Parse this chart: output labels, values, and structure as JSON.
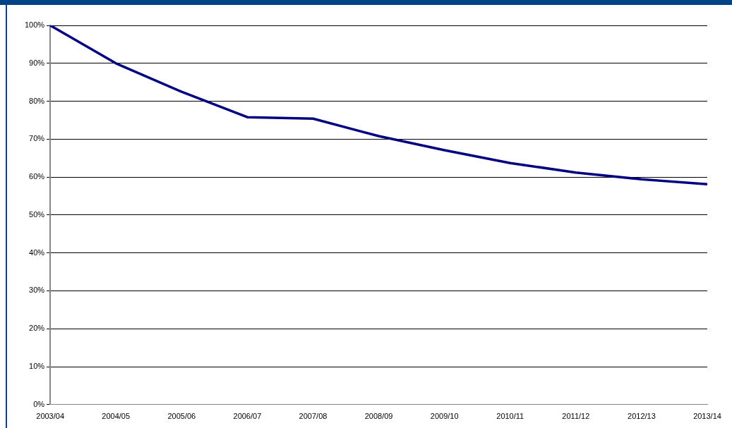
{
  "chart_data": {
    "type": "line",
    "categories": [
      "2003/04",
      "2004/05",
      "2005/06",
      "2006/07",
      "2007/08",
      "2008/09",
      "2009/10",
      "2010/11",
      "2011/12",
      "2012/13",
      "2013/14"
    ],
    "series": [
      {
        "color": "#000080",
        "values": [
          100,
          90,
          82.5,
          75.8,
          75.4,
          70.8,
          67.1,
          63.7,
          61.2,
          59.4,
          58.1
        ]
      }
    ],
    "ylim": [
      0,
      100
    ],
    "yticks": [
      {
        "value": 0,
        "label": "0%"
      },
      {
        "value": 10,
        "label": "10%"
      },
      {
        "value": 20,
        "label": "20%"
      },
      {
        "value": 30,
        "label": "30%"
      },
      {
        "value": 40,
        "label": "40%"
      },
      {
        "value": 50,
        "label": "50%"
      },
      {
        "value": 60,
        "label": "60%"
      },
      {
        "value": 70,
        "label": "70%"
      },
      {
        "value": 80,
        "label": "80%"
      },
      {
        "value": 90,
        "label": "90%"
      },
      {
        "value": 100,
        "label": "100%"
      }
    ],
    "grid": "y",
    "legend": false,
    "marker": "none",
    "line_style": "solid"
  }
}
